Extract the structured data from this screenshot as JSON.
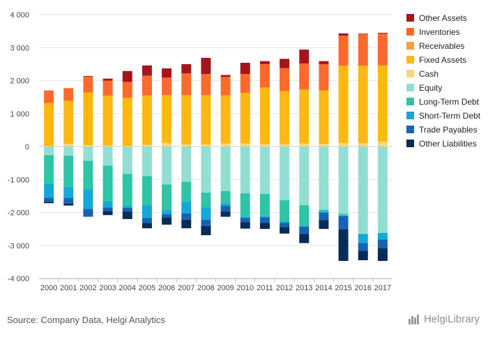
{
  "footer": {
    "source": "Source: Company Data, Helgi Analytics",
    "brand": "HelgiLibrary"
  },
  "colors": {
    "Other Assets": "#a3161b",
    "Inventories": "#fb6a2c",
    "Receivables": "#fd9b43",
    "Fixed Assets": "#fdb813",
    "Cash": "#fdd57e",
    "Equity": "#93ded3",
    "Long-Term Debt": "#2fc4a6",
    "Short-Term Debt": "#13a8d8",
    "Trade Payables": "#1463b4",
    "Other Liabilities": "#062c58"
  },
  "chart_data": {
    "type": "bar",
    "stacked": true,
    "categories": [
      "2000",
      "2001",
      "2002",
      "2003",
      "2004",
      "2005",
      "2006",
      "2007",
      "2008",
      "2009",
      "2010",
      "2011",
      "2012",
      "2013",
      "2014",
      "2015",
      "2016",
      "2017"
    ],
    "ylim": [
      -4000,
      4000
    ],
    "yticks": [
      -4000,
      -3000,
      -2000,
      -1000,
      0,
      1000,
      2000,
      3000,
      4000
    ],
    "ytick_labels": [
      "-4 000",
      "-3 000",
      "-2 000",
      "-1 000",
      "0",
      "1 000",
      "2 000",
      "3 000",
      "4 000"
    ],
    "grid": true,
    "legend_position": "right",
    "assets_series": [
      {
        "name": "Cash",
        "values": [
          20,
          80,
          40,
          30,
          20,
          50,
          110,
          60,
          60,
          90,
          90,
          70,
          70,
          90,
          80,
          110,
          100,
          150
        ]
      },
      {
        "name": "Fixed Assets",
        "values": [
          1300,
          1310,
          1600,
          1510,
          1460,
          1500,
          1450,
          1500,
          1500,
          1460,
          1540,
          1720,
          1610,
          1640,
          1620,
          2340,
          2350,
          2310
        ]
      },
      {
        "name": "Receivables",
        "values": [
          0,
          0,
          0,
          0,
          0,
          0,
          0,
          0,
          0,
          0,
          0,
          0,
          0,
          0,
          0,
          0,
          0,
          0
        ]
      },
      {
        "name": "Inventories",
        "values": [
          380,
          380,
          480,
          460,
          480,
          600,
          530,
          660,
          640,
          560,
          570,
          710,
          700,
          790,
          800,
          910,
          970,
          970
        ]
      },
      {
        "name": "Other Assets",
        "values": [
          0,
          0,
          20,
          60,
          330,
          310,
          280,
          280,
          490,
          60,
          340,
          90,
          280,
          420,
          90,
          70,
          10,
          20
        ]
      }
    ],
    "liabilities_series": [
      {
        "name": "Equity",
        "values": [
          -260,
          -280,
          -430,
          -580,
          -830,
          -900,
          -1150,
          -1070,
          -1400,
          -1350,
          -1420,
          -1440,
          -1630,
          -1780,
          -1920,
          -2040,
          -2650,
          -2620
        ]
      },
      {
        "name": "Long-Term Debt",
        "values": [
          -870,
          -960,
          -870,
          -1080,
          -980,
          -880,
          -780,
          -600,
          -450,
          -370,
          -710,
          -670,
          -640,
          -620,
          -50,
          -50,
          0,
          0
        ]
      },
      {
        "name": "Short-Term Debt",
        "values": [
          -420,
          -320,
          -590,
          -190,
          -50,
          -390,
          -120,
          -360,
          -370,
          -80,
          -40,
          -40,
          -40,
          -30,
          -40,
          -20,
          -280,
          -200
        ]
      },
      {
        "name": "Trade Payables",
        "values": [
          -130,
          -170,
          -240,
          -110,
          -110,
          -150,
          -100,
          -190,
          -190,
          -170,
          -120,
          -160,
          -130,
          -220,
          -220,
          -400,
          -230,
          -270
        ]
      },
      {
        "name": "Other Liabilities",
        "values": [
          -40,
          -60,
          0,
          -120,
          -230,
          -160,
          -220,
          -260,
          -280,
          -160,
          -200,
          -190,
          -200,
          -280,
          -270,
          -960,
          -290,
          -380
        ]
      }
    ],
    "legend_order": [
      "Other Assets",
      "Inventories",
      "Receivables",
      "Fixed Assets",
      "Cash",
      "Equity",
      "Long-Term Debt",
      "Short-Term Debt",
      "Trade Payables",
      "Other Liabilities"
    ]
  }
}
